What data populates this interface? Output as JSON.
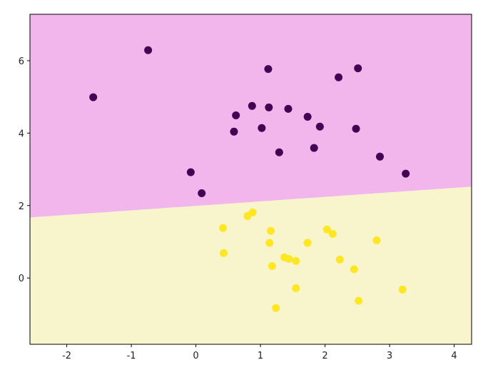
{
  "chart_data": {
    "type": "scatter",
    "xlim": [
      -2.57,
      4.27
    ],
    "ylim": [
      -1.83,
      7.28
    ],
    "xticks": [
      -2,
      -1,
      0,
      1,
      2,
      3,
      4
    ],
    "yticks": [
      0,
      2,
      4,
      6
    ],
    "regions": {
      "boundary_x": [
        -2.57,
        4.27
      ],
      "boundary_y": [
        1.67,
        2.52
      ],
      "upper_color": "#f2b6ec",
      "lower_color": "#f8f5cc"
    },
    "series": [
      {
        "color": "#440154",
        "x": [
          -1.59,
          -0.74,
          1.12,
          2.21,
          2.51,
          0.62,
          0.87,
          1.13,
          1.43,
          1.73,
          1.92,
          0.59,
          1.02,
          2.48,
          1.29,
          1.83,
          2.85,
          3.25,
          -0.08,
          0.09
        ],
        "values": [
          4.99,
          6.29,
          5.77,
          5.54,
          5.79,
          4.49,
          4.75,
          4.71,
          4.67,
          4.45,
          4.18,
          4.04,
          4.14,
          4.12,
          3.47,
          3.59,
          3.35,
          2.88,
          2.92,
          2.34
        ]
      },
      {
        "color": "#fde725",
        "x": [
          0.42,
          0.8,
          0.88,
          1.16,
          1.14,
          0.43,
          1.37,
          1.44,
          1.55,
          1.73,
          2.03,
          2.12,
          2.8,
          2.23,
          2.45,
          1.18,
          1.55,
          1.24,
          2.52,
          3.2
        ],
        "values": [
          1.38,
          1.71,
          1.81,
          1.3,
          0.97,
          0.69,
          0.57,
          0.53,
          0.47,
          0.97,
          1.34,
          1.22,
          1.04,
          0.51,
          0.24,
          0.33,
          -0.28,
          -0.83,
          -0.63,
          -0.32
        ]
      }
    ]
  }
}
